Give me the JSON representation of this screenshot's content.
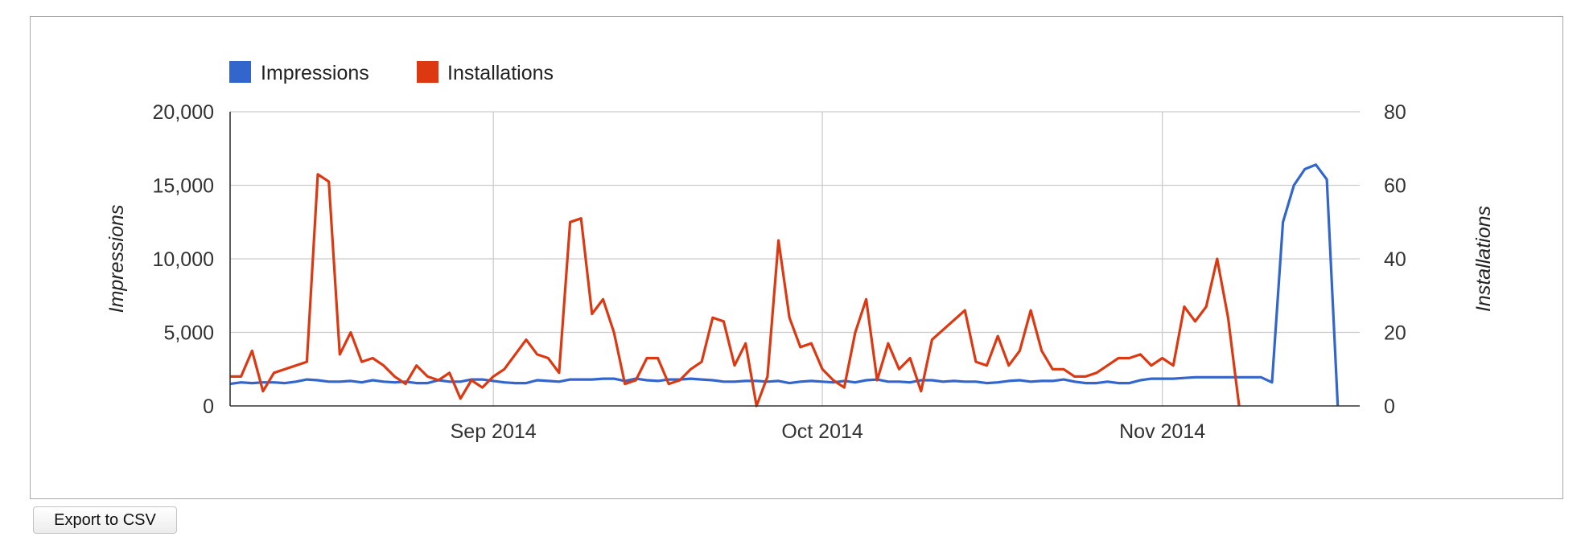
{
  "toolbar": {
    "export_label": "Export to CSV"
  },
  "chart_data": {
    "type": "line",
    "title": "",
    "legend_position": "top-left",
    "grid": true,
    "x_range": [
      "2014-08-08",
      "2014-11-19"
    ],
    "x_ticks": [
      {
        "date": "2014-09-01",
        "label": "Sep 2014"
      },
      {
        "date": "2014-10-01",
        "label": "Oct 2014"
      },
      {
        "date": "2014-11-01",
        "label": "Nov 2014"
      }
    ],
    "left_axis": {
      "label": "Impressions",
      "ylim": [
        0,
        20000
      ],
      "ticks": [
        0,
        5000,
        10000,
        15000,
        20000
      ],
      "tick_labels": [
        "0",
        "5,000",
        "10,000",
        "15,000",
        "20,000"
      ]
    },
    "right_axis": {
      "label": "Installations",
      "ylim": [
        0,
        80
      ],
      "ticks": [
        0,
        20,
        40,
        60,
        80
      ],
      "tick_labels": [
        "0",
        "20",
        "40",
        "60",
        "80"
      ]
    },
    "series": [
      {
        "name": "Impressions",
        "color": "#3366cc",
        "axis": "left",
        "points": [
          [
            "2014-08-08",
            1500
          ],
          [
            "2014-08-09",
            1600
          ],
          [
            "2014-08-10",
            1550
          ],
          [
            "2014-08-11",
            1600
          ],
          [
            "2014-08-12",
            1600
          ],
          [
            "2014-08-13",
            1550
          ],
          [
            "2014-08-14",
            1650
          ],
          [
            "2014-08-15",
            1800
          ],
          [
            "2014-08-16",
            1750
          ],
          [
            "2014-08-17",
            1650
          ],
          [
            "2014-08-18",
            1650
          ],
          [
            "2014-08-19",
            1700
          ],
          [
            "2014-08-20",
            1600
          ],
          [
            "2014-08-21",
            1750
          ],
          [
            "2014-08-22",
            1650
          ],
          [
            "2014-08-23",
            1600
          ],
          [
            "2014-08-24",
            1650
          ],
          [
            "2014-08-25",
            1550
          ],
          [
            "2014-08-26",
            1550
          ],
          [
            "2014-08-27",
            1750
          ],
          [
            "2014-08-28",
            1650
          ],
          [
            "2014-08-29",
            1650
          ],
          [
            "2014-08-30",
            1800
          ],
          [
            "2014-08-31",
            1800
          ],
          [
            "2014-09-01",
            1700
          ],
          [
            "2014-09-02",
            1600
          ],
          [
            "2014-09-03",
            1550
          ],
          [
            "2014-09-04",
            1550
          ],
          [
            "2014-09-05",
            1750
          ],
          [
            "2014-09-06",
            1700
          ],
          [
            "2014-09-07",
            1650
          ],
          [
            "2014-09-08",
            1800
          ],
          [
            "2014-09-09",
            1800
          ],
          [
            "2014-09-10",
            1800
          ],
          [
            "2014-09-11",
            1850
          ],
          [
            "2014-09-12",
            1850
          ],
          [
            "2014-09-13",
            1700
          ],
          [
            "2014-09-14",
            1850
          ],
          [
            "2014-09-15",
            1750
          ],
          [
            "2014-09-16",
            1700
          ],
          [
            "2014-09-17",
            1800
          ],
          [
            "2014-09-18",
            1800
          ],
          [
            "2014-09-19",
            1850
          ],
          [
            "2014-09-20",
            1800
          ],
          [
            "2014-09-21",
            1750
          ],
          [
            "2014-09-22",
            1650
          ],
          [
            "2014-09-23",
            1650
          ],
          [
            "2014-09-24",
            1700
          ],
          [
            "2014-09-25",
            1700
          ],
          [
            "2014-09-26",
            1650
          ],
          [
            "2014-09-27",
            1700
          ],
          [
            "2014-09-28",
            1550
          ],
          [
            "2014-09-29",
            1650
          ],
          [
            "2014-09-30",
            1700
          ],
          [
            "2014-10-01",
            1650
          ],
          [
            "2014-10-02",
            1600
          ],
          [
            "2014-10-03",
            1700
          ],
          [
            "2014-10-04",
            1600
          ],
          [
            "2014-10-05",
            1750
          ],
          [
            "2014-10-06",
            1800
          ],
          [
            "2014-10-07",
            1650
          ],
          [
            "2014-10-08",
            1650
          ],
          [
            "2014-10-09",
            1600
          ],
          [
            "2014-10-10",
            1750
          ],
          [
            "2014-10-11",
            1750
          ],
          [
            "2014-10-12",
            1650
          ],
          [
            "2014-10-13",
            1700
          ],
          [
            "2014-10-14",
            1650
          ],
          [
            "2014-10-15",
            1650
          ],
          [
            "2014-10-16",
            1550
          ],
          [
            "2014-10-17",
            1600
          ],
          [
            "2014-10-18",
            1700
          ],
          [
            "2014-10-19",
            1750
          ],
          [
            "2014-10-20",
            1650
          ],
          [
            "2014-10-21",
            1700
          ],
          [
            "2014-10-22",
            1700
          ],
          [
            "2014-10-23",
            1800
          ],
          [
            "2014-10-24",
            1650
          ],
          [
            "2014-10-25",
            1550
          ],
          [
            "2014-10-26",
            1550
          ],
          [
            "2014-10-27",
            1650
          ],
          [
            "2014-10-28",
            1550
          ],
          [
            "2014-10-29",
            1550
          ],
          [
            "2014-10-30",
            1750
          ],
          [
            "2014-10-31",
            1850
          ],
          [
            "2014-11-01",
            1850
          ],
          [
            "2014-11-02",
            1850
          ],
          [
            "2014-11-03",
            1900
          ],
          [
            "2014-11-04",
            1950
          ],
          [
            "2014-11-05",
            1950
          ],
          [
            "2014-11-06",
            1950
          ],
          [
            "2014-11-07",
            1950
          ],
          [
            "2014-11-08",
            1950
          ],
          [
            "2014-11-09",
            1950
          ],
          [
            "2014-11-10",
            1950
          ],
          [
            "2014-11-11",
            1600
          ],
          [
            "2014-11-12",
            12500
          ],
          [
            "2014-11-13",
            15000
          ],
          [
            "2014-11-14",
            16100
          ],
          [
            "2014-11-15",
            16400
          ],
          [
            "2014-11-16",
            15400
          ],
          [
            "2014-11-17",
            0
          ]
        ]
      },
      {
        "name": "Installations",
        "color": "#dc3912",
        "axis": "right",
        "points": [
          [
            "2014-08-08",
            8
          ],
          [
            "2014-08-09",
            8
          ],
          [
            "2014-08-10",
            15
          ],
          [
            "2014-08-11",
            4
          ],
          [
            "2014-08-12",
            9
          ],
          [
            "2014-08-15",
            12
          ],
          [
            "2014-08-16",
            63
          ],
          [
            "2014-08-17",
            61
          ],
          [
            "2014-08-18",
            14
          ],
          [
            "2014-08-19",
            20
          ],
          [
            "2014-08-20",
            12
          ],
          [
            "2014-08-21",
            13
          ],
          [
            "2014-08-22",
            11
          ],
          [
            "2014-08-23",
            8
          ],
          [
            "2014-08-24",
            6
          ],
          [
            "2014-08-25",
            11
          ],
          [
            "2014-08-26",
            8
          ],
          [
            "2014-08-27",
            7
          ],
          [
            "2014-08-28",
            9
          ],
          [
            "2014-08-29",
            2
          ],
          [
            "2014-08-30",
            7
          ],
          [
            "2014-08-31",
            5
          ],
          [
            "2014-09-01",
            8
          ],
          [
            "2014-09-02",
            10
          ],
          [
            "2014-09-03",
            14
          ],
          [
            "2014-09-04",
            18
          ],
          [
            "2014-09-05",
            14
          ],
          [
            "2014-09-06",
            13
          ],
          [
            "2014-09-07",
            9
          ],
          [
            "2014-09-08",
            50
          ],
          [
            "2014-09-09",
            51
          ],
          [
            "2014-09-10",
            25
          ],
          [
            "2014-09-11",
            29
          ],
          [
            "2014-09-12",
            20
          ],
          [
            "2014-09-13",
            6
          ],
          [
            "2014-09-14",
            7
          ],
          [
            "2014-09-15",
            13
          ],
          [
            "2014-09-16",
            13
          ],
          [
            "2014-09-17",
            6
          ],
          [
            "2014-09-18",
            7
          ],
          [
            "2014-09-19",
            10
          ],
          [
            "2014-09-20",
            12
          ],
          [
            "2014-09-21",
            24
          ],
          [
            "2014-09-22",
            23
          ],
          [
            "2014-09-23",
            11
          ],
          [
            "2014-09-24",
            17
          ],
          [
            "2014-09-25",
            0
          ],
          [
            "2014-09-26",
            8
          ],
          [
            "2014-09-27",
            45
          ],
          [
            "2014-09-28",
            24
          ],
          [
            "2014-09-29",
            16
          ],
          [
            "2014-09-30",
            17
          ],
          [
            "2014-10-01",
            10
          ],
          [
            "2014-10-02",
            7
          ],
          [
            "2014-10-03",
            5
          ],
          [
            "2014-10-04",
            20
          ],
          [
            "2014-10-05",
            29
          ],
          [
            "2014-10-06",
            7
          ],
          [
            "2014-10-07",
            17
          ],
          [
            "2014-10-08",
            10
          ],
          [
            "2014-10-09",
            13
          ],
          [
            "2014-10-10",
            4
          ],
          [
            "2014-10-11",
            18
          ],
          [
            "2014-10-14",
            26
          ],
          [
            "2014-10-15",
            12
          ],
          [
            "2014-10-16",
            11
          ],
          [
            "2014-10-17",
            19
          ],
          [
            "2014-10-18",
            11
          ],
          [
            "2014-10-19",
            15
          ],
          [
            "2014-10-20",
            26
          ],
          [
            "2014-10-21",
            15
          ],
          [
            "2014-10-22",
            10
          ],
          [
            "2014-10-23",
            10
          ],
          [
            "2014-10-24",
            8
          ],
          [
            "2014-10-25",
            8
          ],
          [
            "2014-10-26",
            9
          ],
          [
            "2014-10-27",
            11
          ],
          [
            "2014-10-28",
            13
          ],
          [
            "2014-10-29",
            13
          ],
          [
            "2014-10-30",
            14
          ],
          [
            "2014-10-31",
            11
          ],
          [
            "2014-11-01",
            13
          ],
          [
            "2014-11-02",
            11
          ],
          [
            "2014-11-03",
            27
          ],
          [
            "2014-11-04",
            23
          ],
          [
            "2014-11-05",
            27
          ],
          [
            "2014-11-06",
            40
          ],
          [
            "2014-11-07",
            24
          ],
          [
            "2014-11-08",
            0
          ]
        ]
      }
    ]
  }
}
